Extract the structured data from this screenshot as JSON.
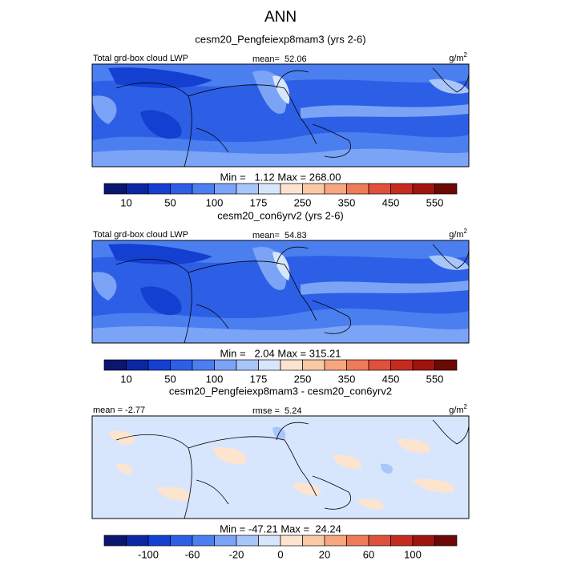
{
  "title": "ANN",
  "palette": [
    "#0a1670",
    "#0b27a3",
    "#1440d2",
    "#2d5fe6",
    "#4b7ff0",
    "#7ba4f6",
    "#a9c6fb",
    "#d7e6fd",
    "#fde4cf",
    "#fcc9a6",
    "#f8a67f",
    "#ef7c58",
    "#df513a",
    "#c52c20",
    "#a01410",
    "#6b0907"
  ],
  "panels": [
    {
      "title": "cesm20_Pengfeiexp8mam3 (yrs 2-6)",
      "left_text": "Total grd-box cloud LWP",
      "center_text": "mean=  52.06",
      "units": "g/m",
      "units_exp": "2",
      "stats": "Min =   1.12 Max = 268.00",
      "colorbar_labels": [
        10,
        null,
        50,
        null,
        100,
        null,
        175,
        null,
        250,
        null,
        350,
        null,
        450,
        null,
        550
      ]
    },
    {
      "title": "cesm20_con6yrv2 (yrs 2-6)",
      "left_text": "Total grd-box cloud LWP",
      "center_text": "mean=  54.83",
      "units": "g/m",
      "units_exp": "2",
      "stats": "Min =   2.04 Max = 315.21",
      "colorbar_labels": [
        10,
        null,
        50,
        null,
        100,
        null,
        175,
        null,
        250,
        null,
        350,
        null,
        450,
        null,
        550
      ]
    },
    {
      "title": "cesm20_Pengfeiexp8mam3 - cesm20_con6yrv2",
      "left_text": "mean =  -2.77",
      "center_text": "rmse =  5.24",
      "units": "g/m",
      "units_exp": "2",
      "stats": "Min = -47.21 Max =  24.24",
      "colorbar_labels": [
        null,
        -100,
        null,
        -60,
        null,
        -20,
        null,
        0,
        null,
        20,
        null,
        60,
        null,
        100,
        null
      ]
    }
  ]
}
